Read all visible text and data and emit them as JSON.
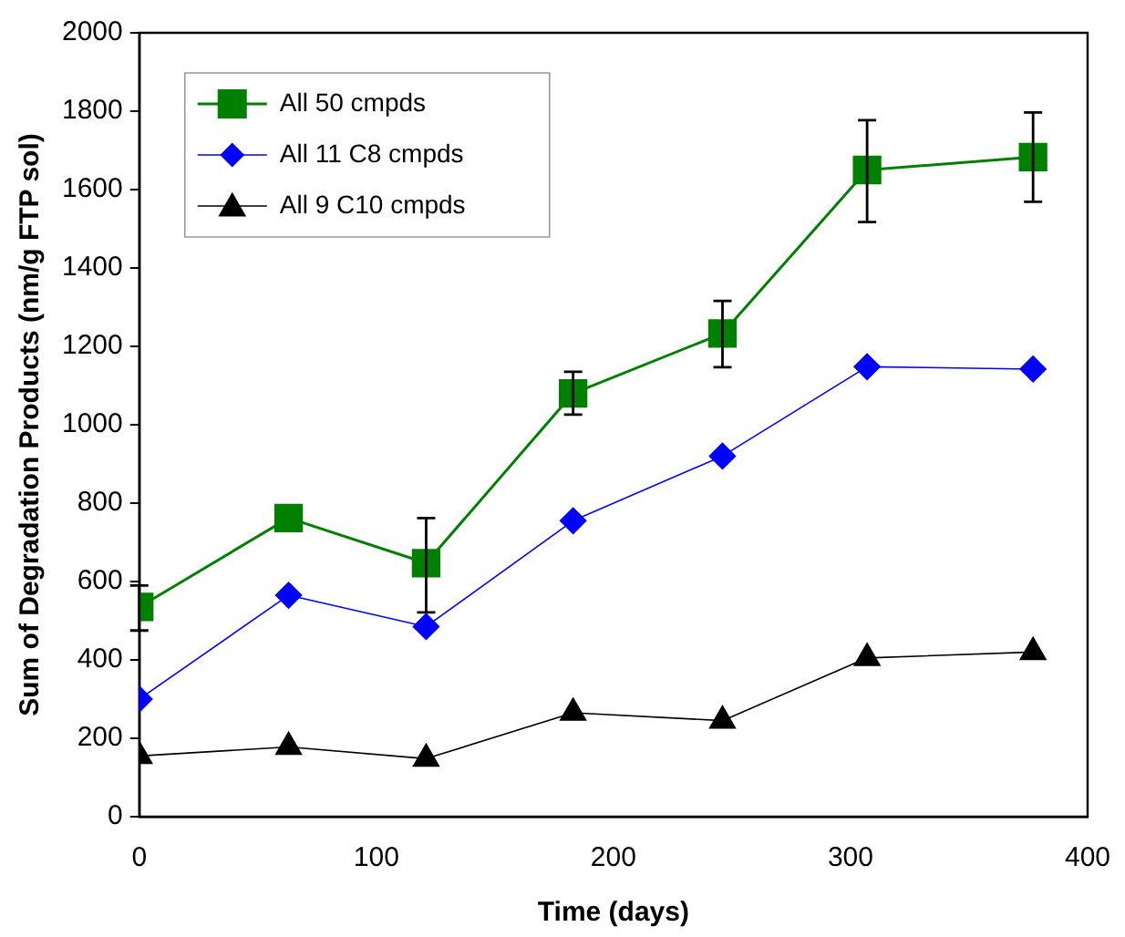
{
  "chart_data": {
    "type": "line",
    "xlabel": "Time (days)",
    "ylabel": "Sum of Degradation Products (nm/g FTP sol)",
    "x": [
      0,
      63,
      121,
      183,
      246,
      307,
      377
    ],
    "series": [
      {
        "name": "All 50 cmpds",
        "color": "#008000",
        "marker": "square",
        "values": [
          535,
          762,
          647,
          1080,
          1233,
          1650,
          1683
        ],
        "errors": [
          [
            475,
            590
          ],
          null,
          [
            521,
            762
          ],
          [
            1026,
            1135
          ],
          [
            1147,
            1316
          ],
          [
            1517,
            1777
          ],
          [
            1569,
            1797
          ]
        ]
      },
      {
        "name": "All 11 C8 cmpds",
        "color": "#0000ff",
        "marker": "diamond",
        "values": [
          300,
          565,
          485,
          755,
          920,
          1148,
          1142
        ]
      },
      {
        "name": "All 9 C10 cmpds",
        "color": "#000000",
        "marker": "triangle",
        "values": [
          155,
          178,
          148,
          265,
          245,
          405,
          420
        ]
      }
    ],
    "xlim": [
      0,
      400
    ],
    "xticks": [
      0,
      100,
      200,
      300,
      400
    ],
    "ylim": [
      0,
      2000
    ],
    "yticks": [
      0,
      200,
      400,
      600,
      800,
      1000,
      1200,
      1400,
      1600,
      1800,
      2000
    ],
    "grid": false,
    "legend": "top left",
    "line_style": "solid"
  }
}
